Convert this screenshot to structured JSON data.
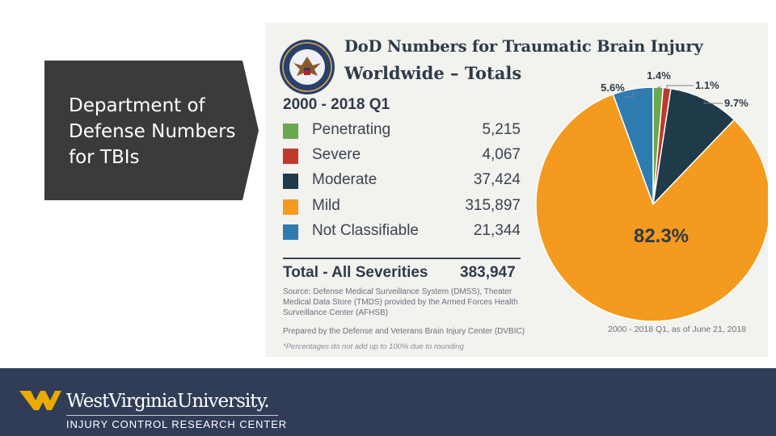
{
  "slide": {
    "title": "Department of Defense Numbers for TBIs"
  },
  "infographic": {
    "title_line1": "DoD Numbers for Traumatic Brain Injury",
    "title_line2": "Worldwide – Totals",
    "period": "2000 - 2018 Q1",
    "total_label": "Total - All Severities",
    "total_value": "383,947",
    "source": "Source: Defense Medical Surveillance System (DMSS), Theater Medical Data Store (TMDS) provided by the Armed Forces Health Surveillance Center (AFHSB)",
    "prepared_by": "Prepared by the Defense and Veterans Brain Injury Center (DVBIC)",
    "footnote": "*Percentages do not add up to 100% due to rounding",
    "as_of": "2000 - 2018 Q1, as of June 21, 2018",
    "seal_icon": "dod-seal-icon"
  },
  "chart_data": {
    "type": "pie",
    "title": "DoD Numbers for Traumatic Brain Injury Worldwide – Totals",
    "subtitle": "2000 - 2018 Q1",
    "slices": [
      {
        "name": "Penetrating",
        "value": 5215,
        "value_label": "5,215",
        "percent": 1.4,
        "percent_label": "1.4%",
        "color": "#6aa84f"
      },
      {
        "name": "Severe",
        "value": 4067,
        "value_label": "4,067",
        "percent": 1.1,
        "percent_label": "1.1%",
        "color": "#c0392b"
      },
      {
        "name": "Moderate",
        "value": 37424,
        "value_label": "37,424",
        "percent": 9.7,
        "percent_label": "9.7%",
        "color": "#1f3a48"
      },
      {
        "name": "Mild",
        "value": 315897,
        "value_label": "315,897",
        "percent": 82.3,
        "percent_label": "82.3%",
        "color": "#f39a1f"
      },
      {
        "name": "Not Classifiable",
        "value": 21344,
        "value_label": "21,344",
        "percent": 5.6,
        "percent_label": "5.6%",
        "color": "#2e7bb0"
      }
    ],
    "legend_position": "left"
  },
  "footer": {
    "university": "WestVirginiaUniversity.",
    "center": "INJURY CONTROL RESEARCH CENTER",
    "logo_icon": "flying-wv-logo-icon",
    "background": "#313d57",
    "accent": "#eaaa00"
  },
  "colors": {
    "title_box": "#3b3b3b",
    "infographic_bg": "#f2f2ef"
  }
}
